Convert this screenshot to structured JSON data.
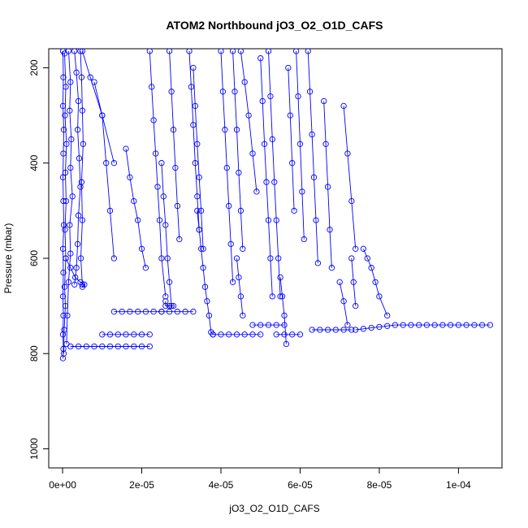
{
  "chart_data": {
    "type": "line",
    "title": "ATOM2 Northbound jO3_O2_O1D_CAFS",
    "xlabel": "jO3_O2_O1D_CAFS",
    "ylabel": "Pressure (mbar)",
    "xlim": [
      -3.5e-06,
      0.000111
    ],
    "ylim": [
      1040,
      160
    ],
    "y_inverted": true,
    "grid": false,
    "x_ticks": [
      {
        "value": 0,
        "label": "0e+00"
      },
      {
        "value": 2e-05,
        "label": "2e-05"
      },
      {
        "value": 4e-05,
        "label": "4e-05"
      },
      {
        "value": 6e-05,
        "label": "6e-05"
      },
      {
        "value": 8e-05,
        "label": "8e-05"
      },
      {
        "value": 0.0001,
        "label": "1e-04"
      }
    ],
    "y_ticks": [
      {
        "value": 200,
        "label": "200"
      },
      {
        "value": 400,
        "label": "400"
      },
      {
        "value": 600,
        "label": "600"
      },
      {
        "value": 800,
        "label": "800"
      },
      {
        "value": 1000,
        "label": "1000"
      }
    ],
    "series_color": "#0000ff",
    "marker": "open-circle",
    "series": [
      {
        "x": [
          1e-07,
          2e-07,
          1e-07,
          3e-07,
          2e-07,
          1e-07,
          2e-07,
          3e-07,
          1e-07,
          2e-07,
          1e-07,
          2e-07,
          1e-07,
          2e-07,
          1e-07
        ],
        "y": [
          165,
          220,
          280,
          330,
          380,
          430,
          480,
          530,
          580,
          630,
          680,
          720,
          760,
          790,
          810
        ]
      },
      {
        "x": [
          5e-07,
          8e-07,
          6e-07,
          1e-06,
          7e-07,
          9e-07,
          6e-07,
          8e-07,
          5e-07,
          7e-07,
          4e-07,
          3e-07
        ],
        "y": [
          170,
          240,
          300,
          360,
          420,
          480,
          540,
          600,
          660,
          700,
          750,
          800
        ]
      },
      {
        "x": [
          1.5e-06,
          2e-06,
          1.8e-06,
          2.2e-06,
          2e-06,
          2.5e-06,
          1.8e-06,
          2e-06,
          1.5e-06,
          1.2e-06,
          1e-06
        ],
        "y": [
          165,
          230,
          290,
          350,
          410,
          470,
          530,
          590,
          650,
          720,
          780
        ]
      },
      {
        "x": [
          3e-06,
          3.5e-06,
          4e-06,
          3.8e-06,
          4.2e-06,
          4.5e-06,
          4e-06,
          3.8e-06,
          3.5e-06,
          3e-06
        ],
        "y": [
          165,
          210,
          270,
          330,
          390,
          450,
          510,
          570,
          620,
          655
        ]
      },
      {
        "x": [
          4.5e-06,
          4.8e-06,
          5e-06,
          5.2e-06,
          4.8e-06,
          5e-06,
          4.6e-06,
          5e-06
        ],
        "y": [
          165,
          220,
          290,
          360,
          440,
          520,
          600,
          655
        ]
      },
      {
        "x": [
          8e-07,
          2e-06,
          3.2e-06,
          4.5e-06,
          5.5e-06,
          5e-06
        ],
        "y": [
          600,
          620,
          640,
          650,
          655,
          660
        ]
      },
      {
        "x": [
          2e-06,
          4e-06,
          6e-06,
          8e-06,
          1e-05,
          1.2e-05,
          1.4e-05,
          1.6e-05,
          1.8e-05,
          2e-05,
          2.2e-05
        ],
        "y": [
          785,
          785,
          785,
          785,
          785,
          785,
          785,
          785,
          785,
          785,
          785
        ]
      },
      {
        "x": [
          5e-06,
          7e-06,
          1e-05,
          1.3e-05
        ],
        "y": [
          165,
          220,
          300,
          400
        ]
      },
      {
        "x": [
          8e-06,
          1e-05,
          1.1e-05,
          1.2e-05,
          1.3e-05
        ],
        "y": [
          230,
          300,
          400,
          500,
          600
        ]
      },
      {
        "x": [
          1.6e-05,
          1.7e-05,
          1.8e-05,
          1.9e-05,
          2e-05,
          2.1e-05
        ],
        "y": [
          370,
          430,
          480,
          520,
          580,
          620
        ]
      },
      {
        "x": [
          2.2e-05,
          2.25e-05,
          2.3e-05,
          2.35e-05,
          2.4e-05,
          2.45e-05,
          2.5e-05,
          2.6e-05
        ],
        "y": [
          165,
          240,
          310,
          380,
          450,
          520,
          600,
          680
        ]
      },
      {
        "x": [
          2.7e-05,
          2.75e-05,
          2.8e-05,
          2.85e-05,
          2.9e-05,
          2.95e-05
        ],
        "y": [
          165,
          250,
          330,
          410,
          490,
          560
        ]
      },
      {
        "x": [
          2.5e-05,
          2.55e-05,
          2.6e-05,
          2.65e-05,
          2.7e-05,
          2.75e-05
        ],
        "y": [
          400,
          470,
          530,
          600,
          650,
          700
        ]
      },
      {
        "x": [
          1e-05,
          1.2e-05,
          1.4e-05,
          1.6e-05,
          1.8e-05,
          2e-05,
          2.2e-05
        ],
        "y": [
          760,
          760,
          760,
          760,
          760,
          760,
          760
        ]
      },
      {
        "x": [
          1.3e-05,
          1.5e-05,
          1.7e-05,
          1.9e-05,
          2.1e-05,
          2.3e-05,
          2.5e-05
        ],
        "y": [
          712,
          712,
          712,
          712,
          712,
          712,
          712
        ]
      },
      {
        "x": [
          2.5e-05,
          2.7e-05,
          2.9e-05,
          3.1e-05,
          3.3e-05
        ],
        "y": [
          712,
          712,
          712,
          712,
          712
        ]
      },
      {
        "x": [
          2.6e-05,
          2.6e-05,
          2.7e-05,
          2.8e-05
        ],
        "y": [
          690,
          700,
          700,
          700
        ]
      },
      {
        "x": [
          3.2e-05,
          3.25e-05,
          3.3e-05,
          3.35e-05,
          3.4e-05,
          3.45e-05
        ],
        "y": [
          165,
          240,
          320,
          400,
          470,
          540
        ]
      },
      {
        "x": [
          3.3e-05,
          3.35e-05,
          3.4e-05,
          3.45e-05,
          3.5e-05,
          3.55e-05
        ],
        "y": [
          200,
          280,
          360,
          430,
          500,
          580
        ]
      },
      {
        "x": [
          3.4e-05,
          3.45e-05,
          3.5e-05,
          3.55e-05,
          3.6e-05,
          3.65e-05,
          3.7e-05,
          3.75e-05,
          3.8e-05
        ],
        "y": [
          500,
          540,
          580,
          620,
          660,
          690,
          720,
          755,
          760
        ]
      },
      {
        "x": [
          4e-05,
          4.05e-05,
          4.1e-05,
          4.15e-05,
          4.2e-05,
          4.25e-05,
          4.3e-05
        ],
        "y": [
          165,
          250,
          330,
          410,
          490,
          570,
          650
        ]
      },
      {
        "x": [
          4.3e-05,
          4.35e-05,
          4.4e-05,
          4.45e-05,
          4.5e-05,
          4.55e-05
        ],
        "y": [
          165,
          250,
          330,
          420,
          500,
          580
        ]
      },
      {
        "x": [
          3.8e-05,
          4e-05,
          4.2e-05,
          4.4e-05,
          4.6e-05,
          4.8e-05,
          5e-05
        ],
        "y": [
          760,
          760,
          760,
          760,
          760,
          760,
          760
        ]
      },
      {
        "x": [
          4.4e-05,
          4.45e-05,
          4.5e-05,
          4.55e-05
        ],
        "y": [
          600,
          640,
          680,
          720
        ]
      },
      {
        "x": [
          4.5e-05,
          4.6e-05,
          4.7e-05,
          4.8e-05,
          4.9e-05
        ],
        "y": [
          165,
          230,
          300,
          380,
          460
        ]
      },
      {
        "x": [
          5e-05,
          5.05e-05,
          5.1e-05,
          5.15e-05,
          5.2e-05,
          5.25e-05,
          5.3e-05
        ],
        "y": [
          180,
          270,
          360,
          440,
          520,
          600,
          680
        ]
      },
      {
        "x": [
          5.2e-05,
          5.25e-05,
          5.3e-05,
          5.35e-05,
          5.4e-05,
          5.45e-05,
          5.5e-05
        ],
        "y": [
          165,
          260,
          350,
          440,
          520,
          600,
          680
        ]
      },
      {
        "x": [
          4.8e-05,
          5e-05,
          5.2e-05,
          5.4e-05,
          5.6e-05
        ],
        "y": [
          740,
          740,
          740,
          740,
          740
        ]
      },
      {
        "x": [
          5.4e-05,
          5.6e-05,
          5.8e-05,
          6e-05
        ],
        "y": [
          760,
          760,
          760,
          760
        ]
      },
      {
        "x": [
          5.5e-05,
          5.55e-05,
          5.6e-05,
          5.65e-05
        ],
        "y": [
          640,
          680,
          720,
          780
        ]
      },
      {
        "x": [
          5.7e-05,
          5.75e-05,
          5.8e-05,
          5.85e-05
        ],
        "y": [
          200,
          300,
          400,
          500
        ]
      },
      {
        "x": [
          5.9e-05,
          5.95e-05,
          6e-05,
          6.05e-05,
          6.1e-05
        ],
        "y": [
          165,
          260,
          360,
          460,
          560
        ]
      },
      {
        "x": [
          6.2e-05,
          6.25e-05,
          6.3e-05,
          6.35e-05,
          6.4e-05,
          6.45e-05
        ],
        "y": [
          165,
          250,
          340,
          430,
          520,
          610
        ]
      },
      {
        "x": [
          6.6e-05,
          6.65e-05,
          6.7e-05,
          6.75e-05,
          6.8e-05
        ],
        "y": [
          270,
          360,
          450,
          540,
          620
        ]
      },
      {
        "x": [
          6.3e-05,
          6.5e-05,
          6.7e-05,
          6.9e-05,
          7.1e-05,
          7.3e-05
        ],
        "y": [
          750,
          750,
          750,
          750,
          750,
          750
        ]
      },
      {
        "x": [
          7.1e-05,
          7.2e-05,
          7.3e-05,
          7.4e-05
        ],
        "y": [
          280,
          380,
          480,
          580
        ]
      },
      {
        "x": [
          7.3e-05,
          7.35e-05,
          7.4e-05
        ],
        "y": [
          600,
          650,
          700
        ]
      },
      {
        "x": [
          7e-05,
          7.1e-05,
          7.2e-05
        ],
        "y": [
          650,
          690,
          740
        ]
      },
      {
        "x": [
          7.6e-05,
          7.7e-05,
          7.8e-05,
          7.9e-05,
          8e-05,
          8.2e-05
        ],
        "y": [
          580,
          600,
          620,
          650,
          680,
          720
        ]
      },
      {
        "x": [
          7.4e-05,
          7.6e-05,
          7.8e-05,
          8e-05,
          8.2e-05,
          8.4e-05,
          8.6e-05,
          8.8e-05,
          9e-05,
          9.2e-05,
          9.4e-05,
          9.6e-05,
          9.8e-05,
          0.0001,
          0.000102,
          0.000104,
          0.000106,
          0.000108
        ],
        "y": [
          750,
          748,
          746,
          744,
          742,
          740,
          740,
          740,
          740,
          740,
          740,
          740,
          740,
          740,
          740,
          740,
          740,
          740
        ]
      }
    ]
  }
}
